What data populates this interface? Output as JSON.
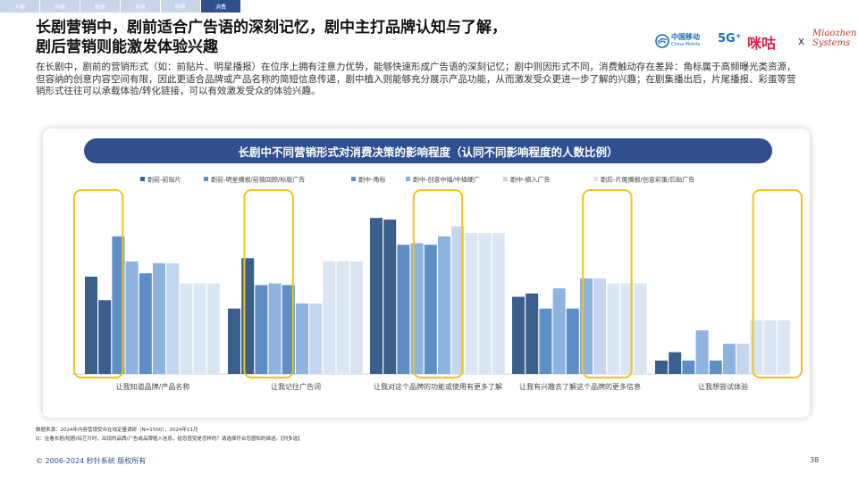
{
  "nav": {
    "tabs": [
      "人群",
      "内容",
      "粘性",
      "场景",
      "明星",
      "消费"
    ],
    "active_index": 5
  },
  "header": {
    "title_line1": "长剧营销中，剧前适合广告语的深刻记忆，剧中主打品牌认知与了解，",
    "title_line2": "剧后营销则能激发体验兴趣",
    "description": "在长剧中，剧前的营销形式（如：前贴片、明星播报）在位序上拥有注意力优势，能够快速形成广告语的深刻记忆；剧中则因形式不同，消费触动存在差异：角标属于高频曝光类资源，但容纳的创意内容空间有限，因此更适合品牌或产品名称的简短信息传递，剧中植入则能够充分展示产品功能，从而激发受众更进一步了解的兴趣；在剧集播出后，片尾播报、彩蛋等营销形式往往可以承载体验/转化链接，可以有效激发受众的体验兴趣。"
  },
  "logos": {
    "china_mobile_cn": "中国移动",
    "china_mobile_en": "China Mobile",
    "five_g": "5G⁺",
    "migu": "咪咕",
    "x": "x",
    "miaozhen_line1": "Miaozhen",
    "miaozhen_line2": "Systems"
  },
  "chart_data": {
    "type": "bar",
    "title": "长剧中不同营销形式对消费决策的影响程度（认同不同影响程度的人数比例）",
    "categories": [
      "让我知道品牌/产品名称",
      "让我记住广告词",
      "让我对这个品牌的功能或使用有更多了解",
      "让我有兴趣去了解这个品牌的更多信息",
      "让我想尝试体验"
    ],
    "legend_groups": [
      {
        "series": [
          0,
          1
        ],
        "highlight_category": 0
      },
      {
        "series": [
          2,
          3
        ],
        "highlight_category": 1
      },
      {
        "series": [
          4,
          5
        ],
        "highlight_category": 2
      },
      {
        "series": [
          6,
          7
        ],
        "highlight_category": 3
      },
      {
        "series": [
          8,
          9
        ],
        "highlight_category": 4
      }
    ],
    "series": [
      {
        "name": "剧前-前贴片",
        "color": "#3a5f8a",
        "values": [
          0.58,
          0.39,
          0.93,
          0.46,
          0.08
        ]
      },
      {
        "name": "",
        "color": "#3a5f8a",
        "values": [
          0.44,
          0.69,
          0.92,
          0.48,
          0.13
        ]
      },
      {
        "name": "剧前-明星播报/前情回顾/标版广告",
        "color": "#5d8fc6",
        "values": [
          0.82,
          0.53,
          0.77,
          0.39,
          0.08
        ]
      },
      {
        "name": "",
        "color": "#8fb3df",
        "values": [
          0.67,
          0.54,
          0.78,
          0.51,
          0.26
        ]
      },
      {
        "name": "剧中-角标",
        "color": "#5d8fc6",
        "values": [
          0.6,
          0.53,
          0.77,
          0.39,
          0.08
        ]
      },
      {
        "name": "剧中-创意中插/中插硬广",
        "color": "#8fb3df",
        "values": [
          0.66,
          0.42,
          0.82,
          0.57,
          0.18
        ]
      },
      {
        "name": "剧中-植入广告",
        "color": "#c5d7ee",
        "values": [
          0.66,
          0.42,
          0.88,
          0.57,
          0.18
        ]
      },
      {
        "name": "",
        "color": "#dbe6f4",
        "values": [
          0.54,
          0.67,
          0.84,
          0.54,
          0.32
        ]
      },
      {
        "name": "剧后-片尾播报/创意彩蛋/后贴广告",
        "color": "#dbe6f4",
        "values": [
          0.54,
          0.67,
          0.84,
          0.54,
          0.32
        ]
      },
      {
        "name": "",
        "color": "#dbe6f4",
        "values": [
          0.54,
          0.67,
          0.84,
          0.54,
          0.32
        ]
      }
    ]
  },
  "footer": {
    "source_line1": "数据来源：2024年内容营销受众在线定量调研（N=1500），2024年11月",
    "source_line2": "Q：在看长剧/短剧/综艺片时，出现的品牌/广告或品牌植入信息，给您感受是怎样的？请选择符合您感知的描述。【列多选】",
    "copyright": "© 2006-2024 秒针系统 版权所有",
    "page": "38"
  }
}
